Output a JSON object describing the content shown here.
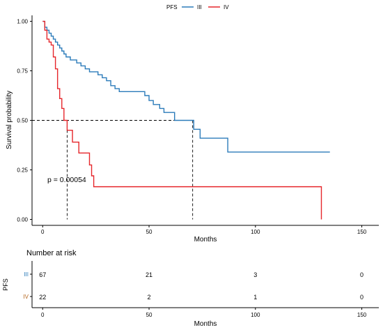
{
  "legend": {
    "title": "PFS",
    "items": [
      {
        "label": "III",
        "color": "#2b7bba"
      },
      {
        "label": "IV",
        "color": "#e6262b"
      }
    ]
  },
  "pvalue_text": "p = 0.00054",
  "risk_table": {
    "title": "Number at risk",
    "ylabel": "PFS",
    "xlabel": "Months",
    "times": [
      "0",
      "50",
      "100",
      "150"
    ],
    "rows": [
      {
        "label": "III",
        "color": "#2b7bba",
        "values": [
          "67",
          "21",
          "3",
          "0"
        ]
      },
      {
        "label": "IV",
        "color": "#b5651d",
        "values": [
          "22",
          "2",
          "1",
          "0"
        ]
      }
    ]
  },
  "chart_data": {
    "type": "line",
    "title": "",
    "xlabel": "Months",
    "ylabel": "Survival probability",
    "xlim": [
      -5,
      158
    ],
    "ylim": [
      -0.03,
      1.03
    ],
    "xticks": [
      0,
      50,
      100,
      150
    ],
    "yticks": [
      0.0,
      0.25,
      0.5,
      0.75,
      1.0
    ],
    "ytick_labels": [
      "0.00",
      "0.25",
      "0.50",
      "0.75",
      "1.00"
    ],
    "grid": false,
    "legend_position": "top",
    "median_line_y": 0.5,
    "medians": [
      {
        "series": "III",
        "x": 70.5
      },
      {
        "series": "IV",
        "x": 11.5
      }
    ],
    "series": [
      {
        "name": "III",
        "color": "#2b7bba",
        "steps": [
          [
            0,
            1.0
          ],
          [
            1,
            0.97
          ],
          [
            2,
            0.955
          ],
          [
            3,
            0.94
          ],
          [
            4,
            0.925
          ],
          [
            5,
            0.91
          ],
          [
            6,
            0.895
          ],
          [
            7,
            0.88
          ],
          [
            8,
            0.865
          ],
          [
            9,
            0.85
          ],
          [
            10,
            0.835
          ],
          [
            11,
            0.82
          ],
          [
            13,
            0.805
          ],
          [
            16,
            0.79
          ],
          [
            18,
            0.775
          ],
          [
            20,
            0.76
          ],
          [
            22,
            0.745
          ],
          [
            26,
            0.73
          ],
          [
            28,
            0.715
          ],
          [
            30,
            0.7
          ],
          [
            32,
            0.675
          ],
          [
            34,
            0.66
          ],
          [
            36,
            0.645
          ],
          [
            48,
            0.625
          ],
          [
            50,
            0.6
          ],
          [
            52,
            0.58
          ],
          [
            55,
            0.56
          ],
          [
            57,
            0.54
          ],
          [
            62,
            0.5
          ],
          [
            70,
            0.5
          ],
          [
            71,
            0.455
          ],
          [
            74,
            0.41
          ],
          [
            87,
            0.34
          ],
          [
            135,
            0.34
          ]
        ]
      },
      {
        "name": "IV",
        "color": "#e6262b",
        "steps": [
          [
            0,
            1.0
          ],
          [
            1,
            0.955
          ],
          [
            2,
            0.91
          ],
          [
            3,
            0.895
          ],
          [
            4,
            0.88
          ],
          [
            5,
            0.82
          ],
          [
            6,
            0.76
          ],
          [
            7,
            0.66
          ],
          [
            8,
            0.61
          ],
          [
            9,
            0.56
          ],
          [
            10,
            0.5
          ],
          [
            11.5,
            0.45
          ],
          [
            14,
            0.39
          ],
          [
            17,
            0.335
          ],
          [
            22,
            0.275
          ],
          [
            23,
            0.22
          ],
          [
            24,
            0.165
          ],
          [
            131,
            0.165
          ],
          [
            131,
            0.0
          ]
        ]
      }
    ]
  }
}
